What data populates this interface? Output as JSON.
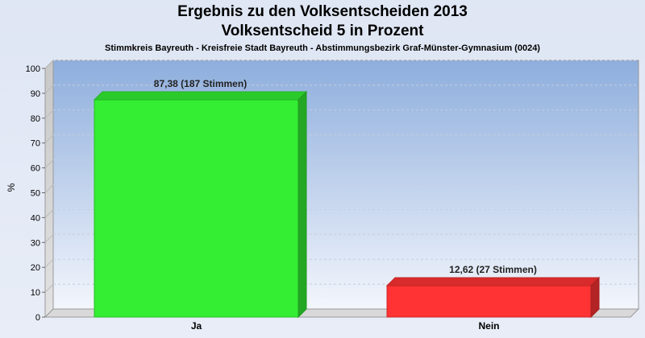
{
  "chart_data": {
    "type": "bar",
    "title": "Ergebnis zu den Volksentscheiden 2013",
    "title_line2": "Volksentscheid 5 in Prozent",
    "subtitle": "Stimmkreis Bayreuth - Kreisfreie Stadt Bayreuth - Abstimmungsbezirk Graf-Münster-Gymnasium (0024)",
    "ylabel": "%",
    "xlabel": "",
    "categories": [
      "Ja",
      "Nein"
    ],
    "values": [
      87.38,
      12.62
    ],
    "data_labels": [
      "87,38 (187 Stimmen)",
      "12,62 (27 Stimmen)"
    ],
    "colors": [
      "#33ee33",
      "#ff3333"
    ],
    "ylim": [
      0,
      100
    ],
    "yticks": [
      0,
      10,
      20,
      30,
      40,
      50,
      60,
      70,
      80,
      90,
      100
    ],
    "grid": true,
    "legend": "none"
  }
}
